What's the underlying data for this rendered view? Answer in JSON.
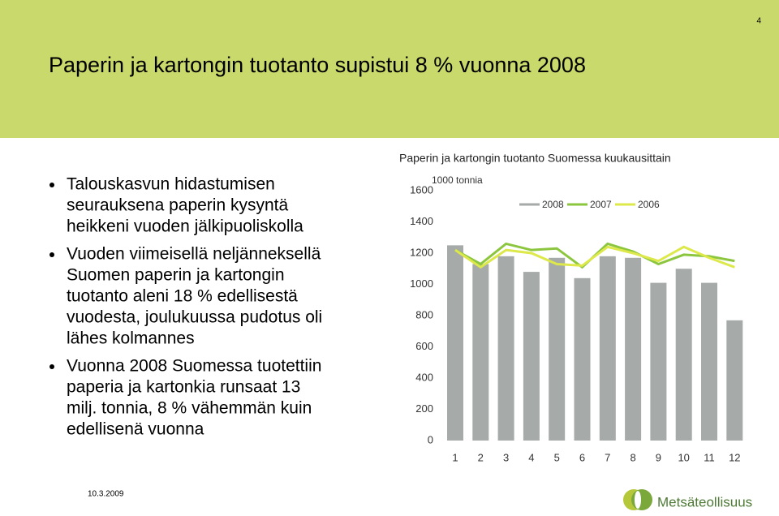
{
  "page_number": "4",
  "title": "Paperin ja kartongin tuotanto supistui  8 % vuonna 2008",
  "bullets": [
    [
      "Talouskasvun hidastumisen",
      "seurauksena paperin kysyntä",
      "heikkeni vuoden jälkipuoliskolla"
    ],
    [
      "Vuoden viimeisellä neljänneksellä",
      "Suomen paperin ja kartongin",
      "tuotanto aleni 18 % edellisestä",
      "vuodesta, joulukuussa pudotus oli",
      "lähes kolmannes"
    ],
    [
      "Vuonna 2008 Suomessa tuotettiin",
      "paperia ja kartonkia runsaat 13",
      "milj. tonnia, 8 % vähemmän kuin",
      "edellisenä vuonna"
    ]
  ],
  "date": "10.3.2009",
  "logo": "Metsäteollisuus",
  "chart_data": {
    "type": "bar",
    "title": "Paperin ja kartongin tuotanto Suomessa  kuukausittain",
    "y_label": "1000 tonnia",
    "categories": [
      "1",
      "2",
      "3",
      "4",
      "5",
      "6",
      "7",
      "8",
      "9",
      "10",
      "11",
      "12"
    ],
    "series": [
      {
        "name": "2008",
        "type": "bar",
        "color": "#a6aaa9",
        "values": [
          1250,
          1130,
          1180,
          1080,
          1170,
          1040,
          1180,
          1170,
          1010,
          1100,
          1010,
          770
        ]
      },
      {
        "name": "2007",
        "type": "line",
        "color": "#8cc63f",
        "values": [
          1220,
          1130,
          1260,
          1220,
          1230,
          1110,
          1260,
          1210,
          1130,
          1190,
          1180,
          1150
        ]
      },
      {
        "name": "2006",
        "type": "line",
        "color": "#dde84a",
        "values": [
          1220,
          1110,
          1220,
          1200,
          1130,
          1120,
          1240,
          1200,
          1150,
          1240,
          1170,
          1110
        ]
      }
    ],
    "ylim": [
      0,
      1600
    ],
    "yticks": [
      0,
      200,
      400,
      600,
      800,
      1000,
      1200,
      1400,
      1600
    ],
    "grid": false,
    "legend": "top"
  }
}
